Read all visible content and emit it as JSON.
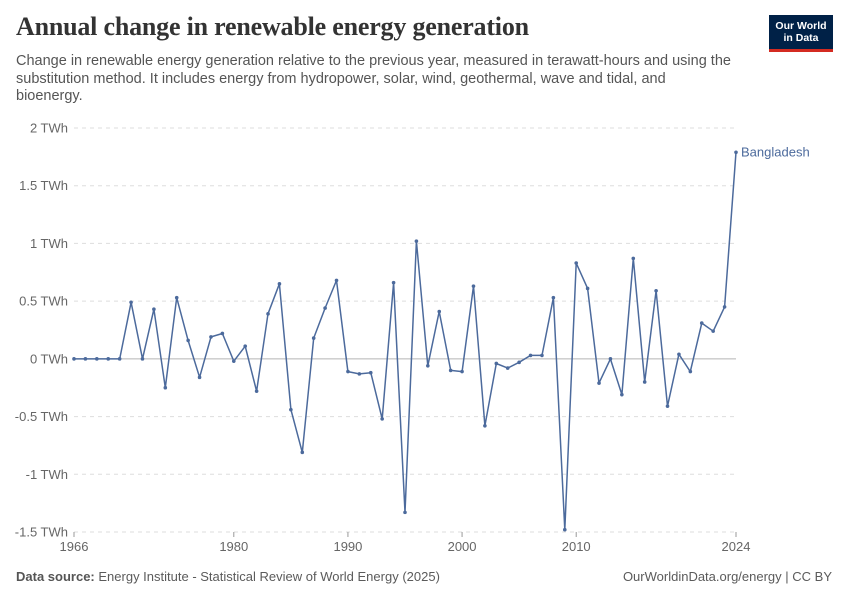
{
  "header": {
    "title": "Annual change in renewable energy generation",
    "subtitle": "Change in renewable energy generation relative to the previous year, measured in terawatt-hours and using the substitution method. It includes energy from hydropower, solar, wind, geothermal, wave and tidal, and bioenergy.",
    "logo_line1": "Our World",
    "logo_line2": "in Data"
  },
  "footer": {
    "source_label": "Data source:",
    "source_text": "Energy Institute - Statistical Review of World Energy (2025)",
    "url": "OurWorldinData.org/energy | CC BY"
  },
  "colors": {
    "series": "#4c6a9c",
    "grid": "#dddddd",
    "zero_line": "#b5b5b5"
  },
  "chart_data": {
    "type": "line",
    "title": "Annual change in renewable energy generation",
    "ylim": [
      -1.5,
      2
    ],
    "xlim": [
      1966,
      2024
    ],
    "y_ticks": [
      {
        "value": 2,
        "label": "2 TWh"
      },
      {
        "value": 1.5,
        "label": "1.5 TWh"
      },
      {
        "value": 1,
        "label": "1 TWh"
      },
      {
        "value": 0.5,
        "label": "0.5 TWh"
      },
      {
        "value": 0,
        "label": "0 TWh"
      },
      {
        "value": -0.5,
        "label": "-0.5 TWh"
      },
      {
        "value": -1,
        "label": "-1 TWh"
      },
      {
        "value": -1.5,
        "label": "-1.5 TWh"
      }
    ],
    "x_ticks": [
      {
        "value": 1966,
        "label": "1966"
      },
      {
        "value": 1980,
        "label": "1980"
      },
      {
        "value": 1990,
        "label": "1990"
      },
      {
        "value": 2000,
        "label": "2000"
      },
      {
        "value": 2010,
        "label": "2010"
      },
      {
        "value": 2024,
        "label": "2024"
      }
    ],
    "grid": true,
    "legend": "end-of-line label",
    "series": [
      {
        "name": "Bangladesh",
        "x": [
          1966,
          1967,
          1968,
          1969,
          1970,
          1971,
          1972,
          1973,
          1974,
          1975,
          1976,
          1977,
          1978,
          1979,
          1980,
          1981,
          1982,
          1983,
          1984,
          1985,
          1986,
          1987,
          1988,
          1989,
          1990,
          1991,
          1992,
          1993,
          1994,
          1995,
          1996,
          1997,
          1998,
          1999,
          2000,
          2001,
          2002,
          2003,
          2004,
          2005,
          2006,
          2007,
          2008,
          2009,
          2010,
          2011,
          2012,
          2013,
          2014,
          2015,
          2016,
          2017,
          2018,
          2019,
          2020,
          2021,
          2022,
          2023,
          2024
        ],
        "values": [
          0,
          0,
          0,
          0,
          0,
          0.49,
          0,
          0.43,
          -0.25,
          0.53,
          0.16,
          -0.16,
          0.19,
          0.22,
          -0.02,
          0.11,
          -0.28,
          0.39,
          0.65,
          -0.44,
          -0.81,
          0.18,
          0.44,
          0.68,
          -0.11,
          -0.13,
          -0.12,
          -0.52,
          0.66,
          -1.33,
          1.02,
          -0.06,
          0.41,
          -0.1,
          -0.11,
          0.63,
          -0.58,
          -0.04,
          -0.08,
          -0.03,
          0.03,
          0.03,
          0.53,
          -1.48,
          0.83,
          0.61,
          -0.21,
          0,
          -0.31,
          0.87,
          -0.2,
          0.59,
          -0.41,
          0.04,
          -0.11,
          0.31,
          0.24,
          0.45,
          1.79
        ]
      }
    ]
  }
}
